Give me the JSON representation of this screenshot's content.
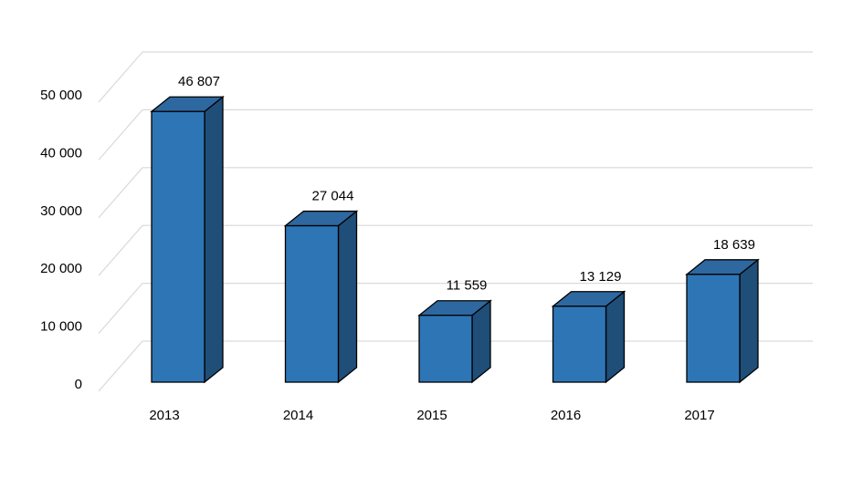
{
  "chart_data": {
    "type": "bar",
    "style": "3d-column",
    "categories": [
      "2013",
      "2014",
      "2015",
      "2016",
      "2017"
    ],
    "values": [
      46807,
      27044,
      11559,
      13129,
      18639
    ],
    "data_labels": [
      "46 807",
      "27 044",
      "11 559",
      "13 129",
      "18 639"
    ],
    "yticks": [
      0,
      10000,
      20000,
      30000,
      40000,
      50000
    ],
    "ytick_labels": [
      "0",
      "10 000",
      "20 000",
      "30 000",
      "40 000",
      "50 000"
    ],
    "ylim": [
      0,
      50000
    ],
    "grid": true,
    "legend": "none",
    "colors": {
      "bar_front": "#2e75b6",
      "bar_side": "#1f4e79",
      "bar_top": "#2e68a0",
      "outline": "#000000",
      "grid": "#d9d9d9"
    }
  }
}
